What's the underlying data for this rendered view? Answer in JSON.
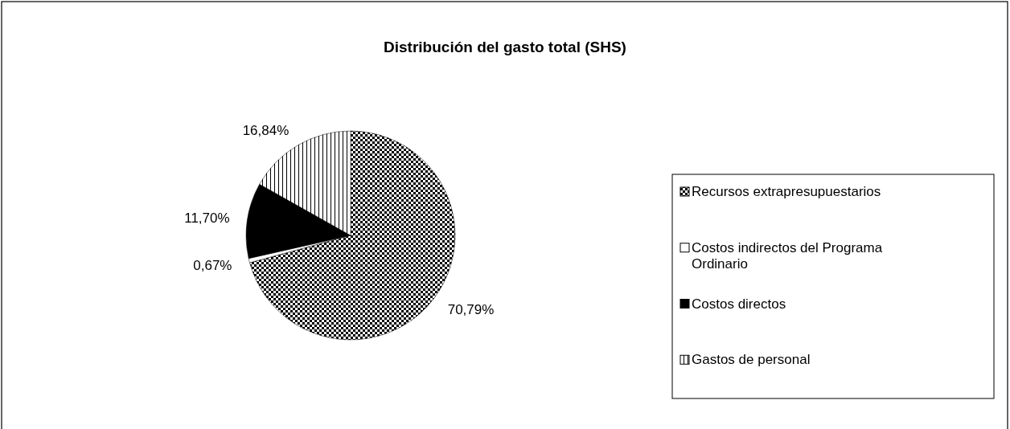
{
  "chart_data": {
    "type": "pie",
    "title": "Distribución del gasto total (SHS)",
    "categories": [
      "Recursos extrapresupuestarios",
      "Costos indirectos del Programa Ordinario",
      "Costos directos",
      "Gastos de personal"
    ],
    "values": [
      70.79,
      0.67,
      11.7,
      16.84
    ],
    "value_labels": [
      "70,79%",
      "0,67%",
      "11,70%",
      "16,84%"
    ],
    "colors": [
      "#000000",
      "#ffffff",
      "#000000",
      "#000000"
    ],
    "legend": "right"
  }
}
